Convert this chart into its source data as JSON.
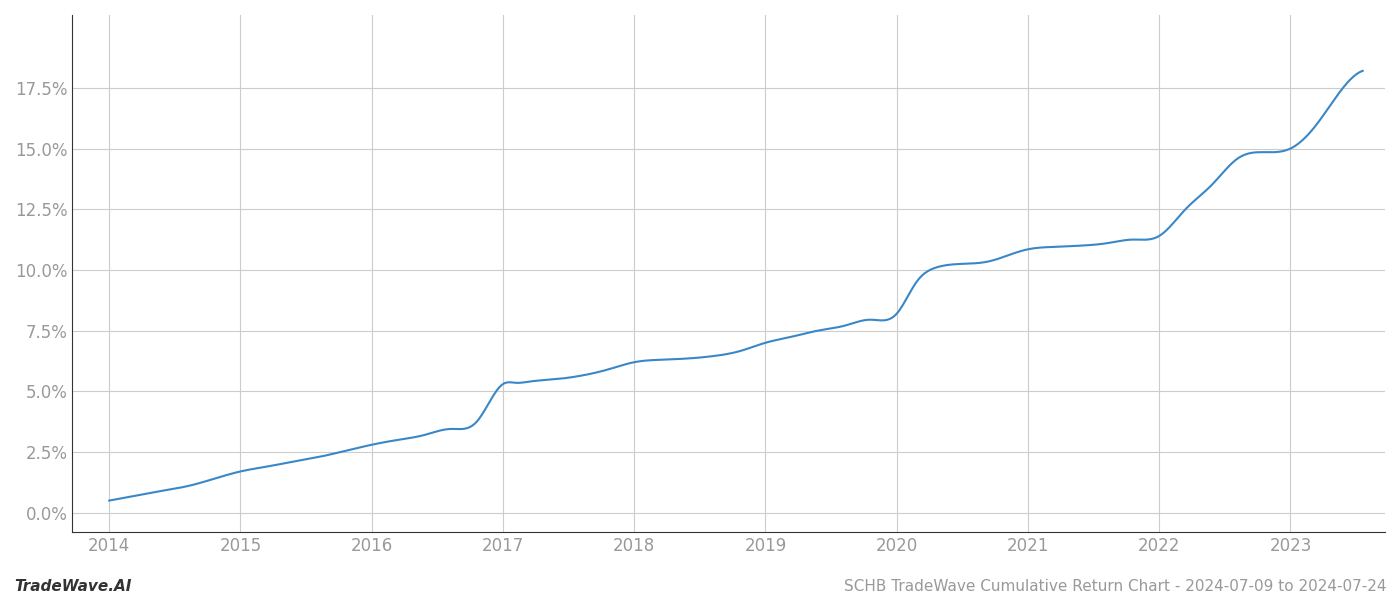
{
  "footer_left": "TradeWave.AI",
  "footer_right": "SCHB TradeWave Cumulative Return Chart - 2024-07-09 to 2024-07-24",
  "line_color": "#3a87c8",
  "line_width": 1.5,
  "background_color": "#ffffff",
  "grid_color": "#cccccc",
  "xlim": [
    2013.72,
    2023.72
  ],
  "ylim": [
    -0.8,
    20.5
  ],
  "yticks": [
    0.0,
    2.5,
    5.0,
    7.5,
    10.0,
    12.5,
    15.0,
    17.5
  ],
  "xticks": [
    2014,
    2015,
    2016,
    2017,
    2018,
    2019,
    2020,
    2021,
    2022,
    2023
  ],
  "tick_label_color": "#999999",
  "tick_fontsize": 12,
  "footer_fontsize": 11,
  "spine_color": "#333333"
}
